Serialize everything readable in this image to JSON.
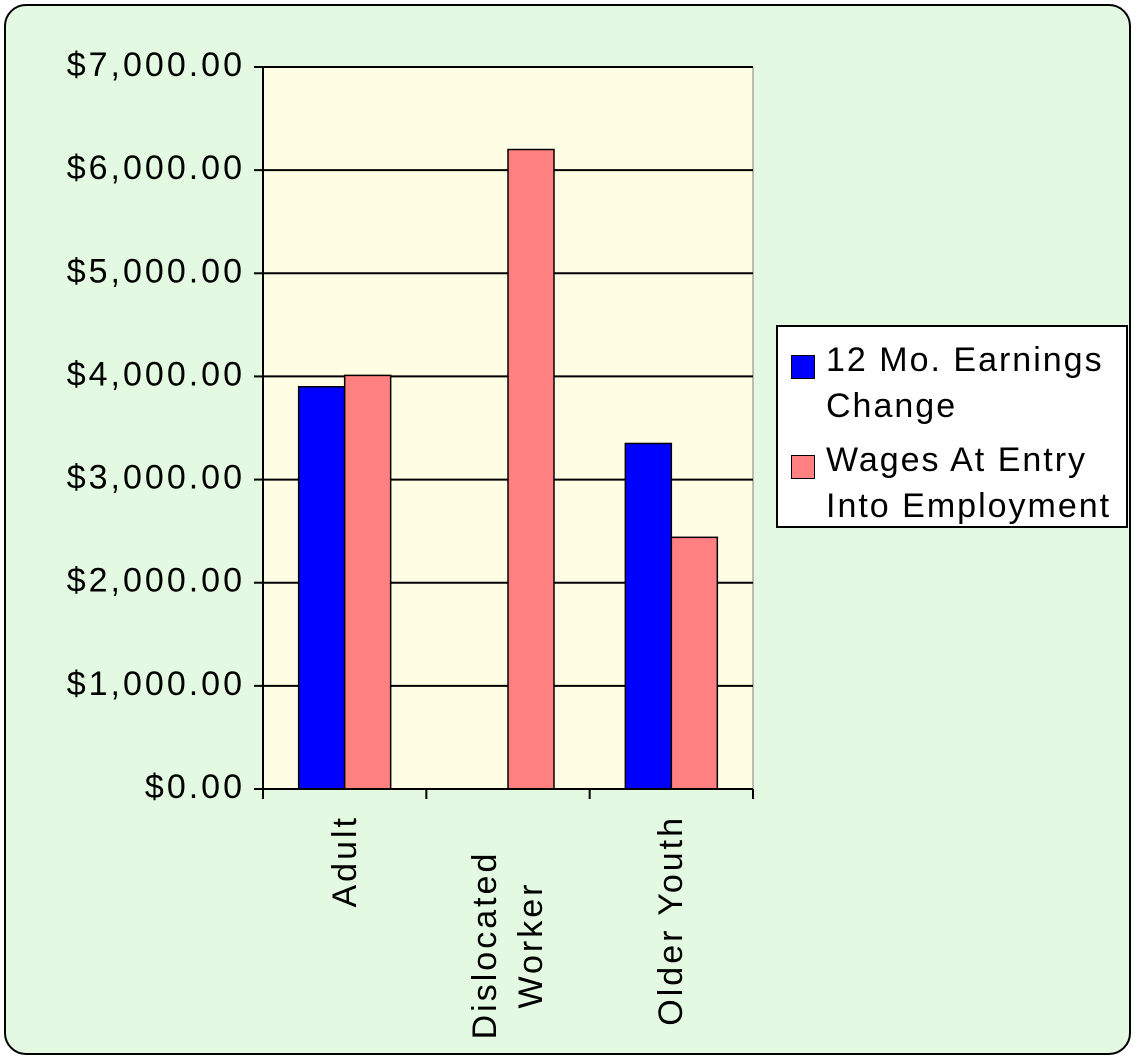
{
  "chart_data": {
    "type": "bar",
    "categories": [
      "Adult",
      "Dislocated Worker",
      "Older Youth"
    ],
    "series": [
      {
        "name": "12 Mo. Earnings Change",
        "color": "#0000ff",
        "values": [
          3900,
          null,
          3350
        ]
      },
      {
        "name": "Wages At Entry Into Employment",
        "color": "#ff8080",
        "values": [
          4010,
          6200,
          2440
        ]
      }
    ],
    "ylim": [
      0,
      7000
    ],
    "yticks": [
      {
        "value": 0,
        "label": "$0.00"
      },
      {
        "value": 1000,
        "label": "$1,000.00"
      },
      {
        "value": 2000,
        "label": "$2,000.00"
      },
      {
        "value": 3000,
        "label": "$3,000.00"
      },
      {
        "value": 4000,
        "label": "$4,000.00"
      },
      {
        "value": 5000,
        "label": "$5,000.00"
      },
      {
        "value": 6000,
        "label": "$6,000.00"
      },
      {
        "value": 7000,
        "label": "$7,000.00"
      }
    ],
    "grid": true,
    "legend": "right"
  }
}
